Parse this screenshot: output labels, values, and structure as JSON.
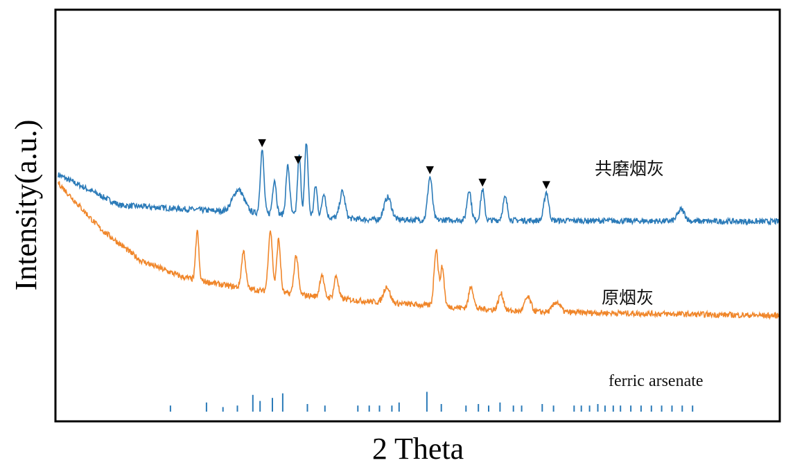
{
  "chart_data": {
    "type": "line",
    "title": "",
    "xlabel": "2 Theta",
    "ylabel": "Intensity(a.u.)",
    "x_tick_labels_shown": false,
    "y_tick_labels_shown": false,
    "grid": false,
    "legend": "none (series labelled inline, right side)",
    "xlim": [
      10,
      80
    ],
    "series": [
      {
        "name": "共磨烟灰",
        "color": "#2a7ab8",
        "baseline": [
          [
            10,
            0.6
          ],
          [
            16,
            0.525
          ],
          [
            40,
            0.49
          ],
          [
            80,
            0.485
          ]
        ],
        "peaks": [
          [
            27.5,
            0.055,
            0.55
          ],
          [
            29.8,
            0.155,
            0.18
          ],
          [
            31.0,
            0.085,
            0.18
          ],
          [
            32.3,
            0.12,
            0.18
          ],
          [
            33.4,
            0.145,
            0.16
          ],
          [
            34.1,
            0.18,
            0.16
          ],
          [
            35.0,
            0.075,
            0.16
          ],
          [
            35.8,
            0.06,
            0.18
          ],
          [
            37.6,
            0.065,
            0.25
          ],
          [
            42.0,
            0.055,
            0.35
          ],
          [
            46.1,
            0.105,
            0.22
          ],
          [
            49.9,
            0.075,
            0.2
          ],
          [
            51.2,
            0.075,
            0.18
          ],
          [
            53.4,
            0.055,
            0.22
          ],
          [
            57.4,
            0.07,
            0.22
          ],
          [
            70.5,
            0.028,
            0.35
          ]
        ],
        "markers_x": [
          29.8,
          33.3,
          46.1,
          51.2,
          57.4
        ],
        "marker_symbol": "▼"
      },
      {
        "name": "原烟灰",
        "color": "#f0862a",
        "baseline": [
          [
            10,
            0.58
          ],
          [
            14,
            0.47
          ],
          [
            18,
            0.39
          ],
          [
            22,
            0.35
          ],
          [
            26,
            0.33
          ],
          [
            30,
            0.315
          ],
          [
            40,
            0.29
          ],
          [
            55,
            0.265
          ],
          [
            80,
            0.255
          ]
        ],
        "peaks": [
          [
            23.5,
            0.12,
            0.15
          ],
          [
            28.0,
            0.09,
            0.2
          ],
          [
            30.6,
            0.15,
            0.2
          ],
          [
            31.4,
            0.13,
            0.18
          ],
          [
            33.1,
            0.095,
            0.2
          ],
          [
            35.6,
            0.055,
            0.2
          ],
          [
            37.0,
            0.055,
            0.2
          ],
          [
            41.9,
            0.04,
            0.3
          ],
          [
            46.7,
            0.14,
            0.2
          ],
          [
            47.3,
            0.095,
            0.18
          ],
          [
            50.1,
            0.055,
            0.22
          ],
          [
            53.0,
            0.04,
            0.25
          ],
          [
            55.6,
            0.035,
            0.3
          ],
          [
            58.4,
            0.025,
            0.35
          ]
        ]
      }
    ],
    "reference": {
      "name": "ferric arsenate",
      "color": "#2a7ab8",
      "sticks": [
        [
          20.9,
          0.2
        ],
        [
          24.4,
          0.3
        ],
        [
          26.0,
          0.15
        ],
        [
          27.4,
          0.2
        ],
        [
          28.9,
          0.55
        ],
        [
          29.6,
          0.35
        ],
        [
          30.8,
          0.45
        ],
        [
          31.8,
          0.6
        ],
        [
          34.2,
          0.25
        ],
        [
          35.9,
          0.2
        ],
        [
          39.1,
          0.2
        ],
        [
          40.2,
          0.2
        ],
        [
          41.2,
          0.2
        ],
        [
          42.4,
          0.2
        ],
        [
          43.1,
          0.3
        ],
        [
          45.8,
          0.65
        ],
        [
          47.2,
          0.25
        ],
        [
          49.6,
          0.2
        ],
        [
          50.8,
          0.25
        ],
        [
          51.8,
          0.2
        ],
        [
          52.9,
          0.3
        ],
        [
          54.2,
          0.2
        ],
        [
          55.0,
          0.2
        ],
        [
          57.0,
          0.25
        ],
        [
          58.1,
          0.2
        ],
        [
          60.1,
          0.2
        ],
        [
          60.8,
          0.2
        ],
        [
          61.6,
          0.2
        ],
        [
          62.4,
          0.25
        ],
        [
          63.1,
          0.2
        ],
        [
          63.9,
          0.2
        ],
        [
          64.6,
          0.2
        ],
        [
          65.6,
          0.2
        ],
        [
          66.6,
          0.2
        ],
        [
          67.6,
          0.2
        ],
        [
          68.6,
          0.2
        ],
        [
          69.6,
          0.2
        ],
        [
          70.6,
          0.2
        ],
        [
          71.6,
          0.2
        ]
      ]
    }
  }
}
